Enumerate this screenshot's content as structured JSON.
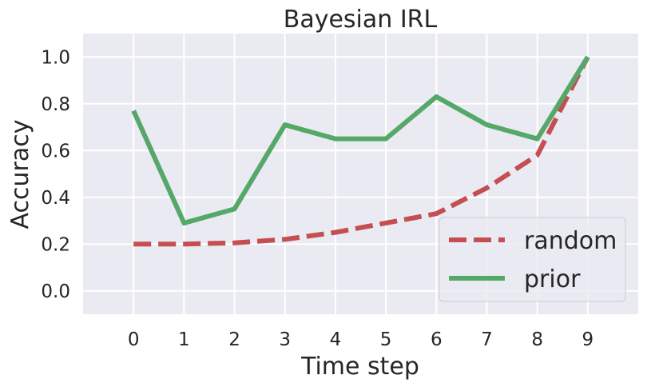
{
  "chart_data": {
    "type": "line",
    "title": "Bayesian IRL",
    "xlabel": "Time step",
    "ylabel": "Accuracy",
    "x": [
      0,
      1,
      2,
      3,
      4,
      5,
      6,
      7,
      8,
      9
    ],
    "xlim": [
      -1,
      10
    ],
    "ylim": [
      -0.1,
      1.1
    ],
    "xticks": [
      0,
      1,
      2,
      3,
      4,
      5,
      6,
      7,
      8,
      9
    ],
    "yticks": [
      0.0,
      0.2,
      0.4,
      0.6,
      0.8,
      1.0
    ],
    "ytick_labels": [
      "0.0",
      "0.2",
      "0.4",
      "0.6",
      "0.8",
      "1.0"
    ],
    "grid": true,
    "legend_position": "bottom-right",
    "series": [
      {
        "name": "random",
        "color": "#c44e52",
        "style": "dashed",
        "values": [
          0.2,
          0.2,
          0.205,
          0.22,
          0.25,
          0.29,
          0.33,
          0.44,
          0.58,
          1.0
        ]
      },
      {
        "name": "prior",
        "color": "#55a868",
        "style": "solid",
        "values": [
          0.77,
          0.29,
          0.35,
          0.71,
          0.65,
          0.65,
          0.83,
          0.71,
          0.65,
          1.0
        ]
      }
    ],
    "plot_background": "#eaeaf2",
    "grid_color": "#ffffff"
  }
}
